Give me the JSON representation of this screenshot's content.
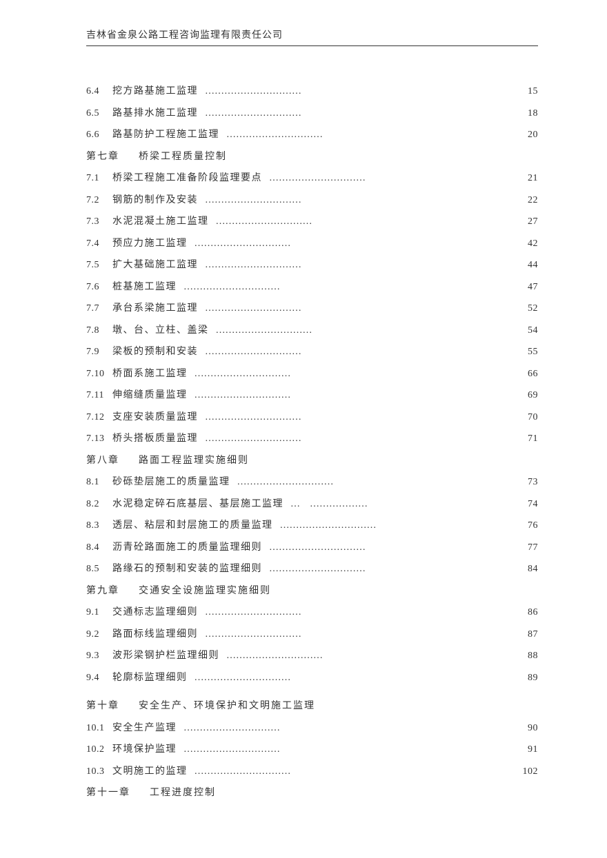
{
  "header": "吉林省金泉公路工程咨询监理有限责任公司",
  "dots": "…………………………",
  "entries": [
    {
      "type": "item",
      "num": "6.4",
      "title": "挖方路基施工监理",
      "page": "15"
    },
    {
      "type": "item",
      "num": "6.5",
      "title": "路基排水施工监理",
      "page": "18"
    },
    {
      "type": "item",
      "num": "6.6",
      "title": "路基防护工程施工监理",
      "page": "20"
    },
    {
      "type": "chapter",
      "label": "第七章",
      "title": "桥梁工程质量控制"
    },
    {
      "type": "item",
      "num": "7.1",
      "title": "桥梁工程施工准备阶段监理要点",
      "page": "21"
    },
    {
      "type": "item",
      "num": "7.2",
      "title": "钢筋的制作及安装",
      "page": "22"
    },
    {
      "type": "item",
      "num": "7.3",
      "title": "水泥混凝土施工监理",
      "page": "27"
    },
    {
      "type": "item",
      "num": "7.4",
      "title": "预应力施工监理",
      "page": "42"
    },
    {
      "type": "item",
      "num": "7.5",
      "title": "扩大基础施工监理",
      "page": "44"
    },
    {
      "type": "item",
      "num": "7.6",
      "title": "桩基施工监理",
      "page": "47"
    },
    {
      "type": "item",
      "num": "7.7",
      "title": "承台系梁施工监理",
      "page": "52"
    },
    {
      "type": "item",
      "num": "7.8",
      "title": "墩、台、立柱、盖梁",
      "page": "54"
    },
    {
      "type": "item",
      "num": "7.9",
      "title": "梁板的预制和安装",
      "page": "55"
    },
    {
      "type": "item",
      "num": "7.10",
      "title": "桥面系施工监理",
      "page": "66"
    },
    {
      "type": "item",
      "num": "7.11",
      "title": "伸缩缝质量监理",
      "page": "69"
    },
    {
      "type": "item",
      "num": "7.12",
      "title": "支座安装质量监理",
      "page": "70"
    },
    {
      "type": "item",
      "num": "7.13",
      "title": "桥头搭板质量监理",
      "page": "71"
    },
    {
      "type": "chapter",
      "label": "第八章",
      "title": "路面工程监理实施细则"
    },
    {
      "type": "item",
      "num": "8.1",
      "title": "砂砾垫层施工的质量监理",
      "page": "73"
    },
    {
      "type": "item",
      "num": "8.2",
      "title": "水泥稳定碎石底基层、基层施工监理",
      "page": "74",
      "dots": "…　………………"
    },
    {
      "type": "item",
      "num": "8.3",
      "title": "透层、粘层和封层施工的质量监理",
      "page": "76"
    },
    {
      "type": "item",
      "num": "8.4",
      "title": "沥青砼路面施工的质量监理细则",
      "page": "77"
    },
    {
      "type": "item",
      "num": "8.5",
      "title": "路缘石的预制和安装的监理细则",
      "page": "84"
    },
    {
      "type": "chapter",
      "label": "第九章",
      "title": "交通安全设施监理实施细则"
    },
    {
      "type": "item",
      "num": "9.1",
      "title": "交通标志监理细则",
      "page": "86"
    },
    {
      "type": "item",
      "num": "9.2",
      "title": "路面标线监理细则",
      "page": "87"
    },
    {
      "type": "item",
      "num": "9.3",
      "title": "波形梁钢护栏监理细则",
      "page": "88"
    },
    {
      "type": "item",
      "num": "9.4",
      "title": "轮廓标监理细则",
      "page": "89"
    },
    {
      "type": "gap"
    },
    {
      "type": "chapter",
      "label": "第十章",
      "title": "安全生产、环境保护和文明施工监理"
    },
    {
      "type": "item",
      "num": "10.1",
      "title": "安全生产监理",
      "page": "90"
    },
    {
      "type": "item",
      "num": "10.2",
      "title": "环境保护监理",
      "page": "91"
    },
    {
      "type": "item",
      "num": "10.3",
      "title": "文明施工的监理",
      "page": "102"
    },
    {
      "type": "chapter",
      "label": "第十一章",
      "title": "工程进度控制"
    }
  ]
}
